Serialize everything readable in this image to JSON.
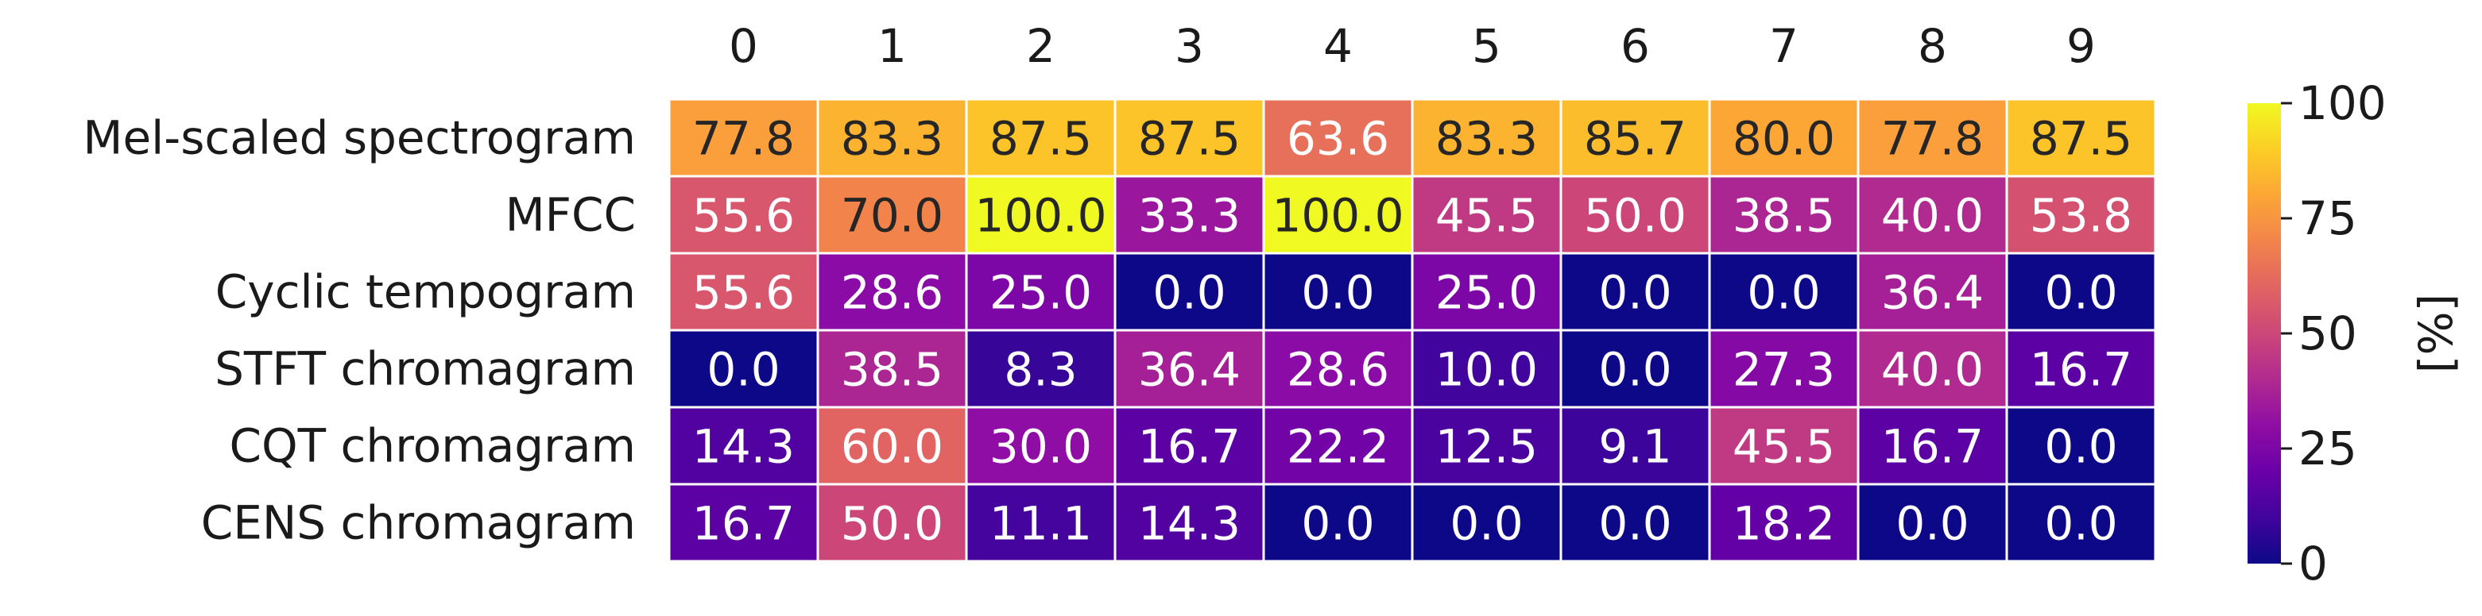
{
  "chart_data": {
    "type": "heatmap",
    "title": "",
    "xlabel": "",
    "ylabel": "",
    "colormap": "plasma",
    "x": [
      "0",
      "1",
      "2",
      "3",
      "4",
      "5",
      "6",
      "7",
      "8",
      "9"
    ],
    "y": [
      "Mel-scaled spectrogram",
      "MFCC",
      "Cyclic tempogram",
      "STFT chromagram",
      "CQT chromagram",
      "CENS chromagram"
    ],
    "values": [
      [
        77.8,
        83.3,
        87.5,
        87.5,
        63.6,
        83.3,
        85.7,
        80.0,
        77.8,
        87.5
      ],
      [
        55.6,
        70.0,
        100.0,
        33.3,
        100.0,
        45.5,
        50.0,
        38.5,
        40.0,
        53.8
      ],
      [
        55.6,
        28.6,
        25.0,
        0.0,
        0.0,
        25.0,
        0.0,
        0.0,
        36.4,
        0.0
      ],
      [
        0.0,
        38.5,
        8.3,
        36.4,
        28.6,
        10.0,
        0.0,
        27.3,
        40.0,
        16.7
      ],
      [
        14.3,
        60.0,
        30.0,
        16.7,
        22.2,
        12.5,
        9.1,
        45.5,
        16.7,
        0.0
      ],
      [
        16.7,
        50.0,
        11.1,
        14.3,
        0.0,
        0.0,
        0.0,
        18.2,
        0.0,
        0.0
      ]
    ],
    "colorbar": {
      "label": "[%]",
      "range": [
        0,
        100
      ],
      "ticks": [
        "0",
        "25",
        "50",
        "75",
        "100"
      ]
    },
    "grid": false
  }
}
